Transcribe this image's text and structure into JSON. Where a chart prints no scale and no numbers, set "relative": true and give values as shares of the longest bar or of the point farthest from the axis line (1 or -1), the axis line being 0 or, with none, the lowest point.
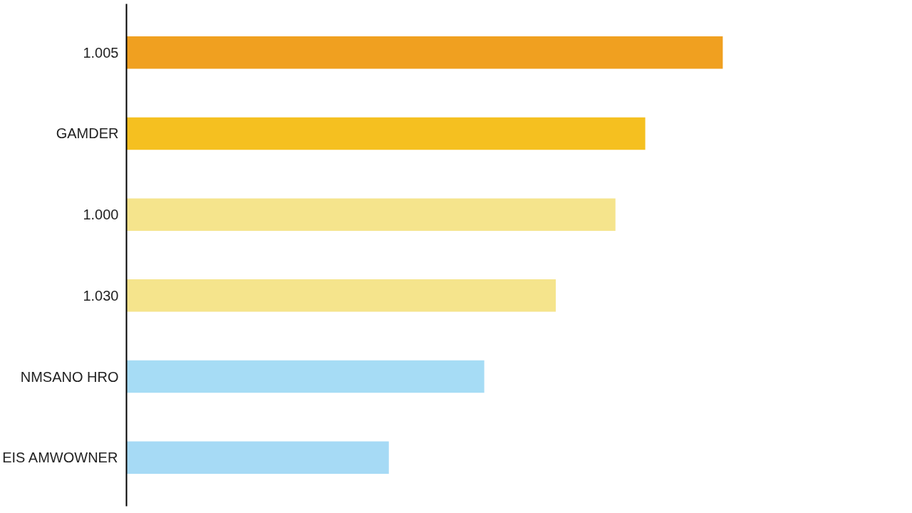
{
  "chart_data": {
    "type": "bar",
    "orientation": "horizontal",
    "relative": true,
    "categories": [
      "1.005",
      "GAMDER",
      "1.000",
      "1.030",
      "NMSANO HRO",
      "EIS AMWOWNER"
    ],
    "values": [
      1,
      0.87,
      0.82,
      0.72,
      0.6,
      0.44
    ],
    "colors": [
      "#f0a020",
      "#f5c020",
      "#f5e48c",
      "#f5e48c",
      "#a6dcf5",
      "#a6daf5"
    ],
    "grid": false
  }
}
